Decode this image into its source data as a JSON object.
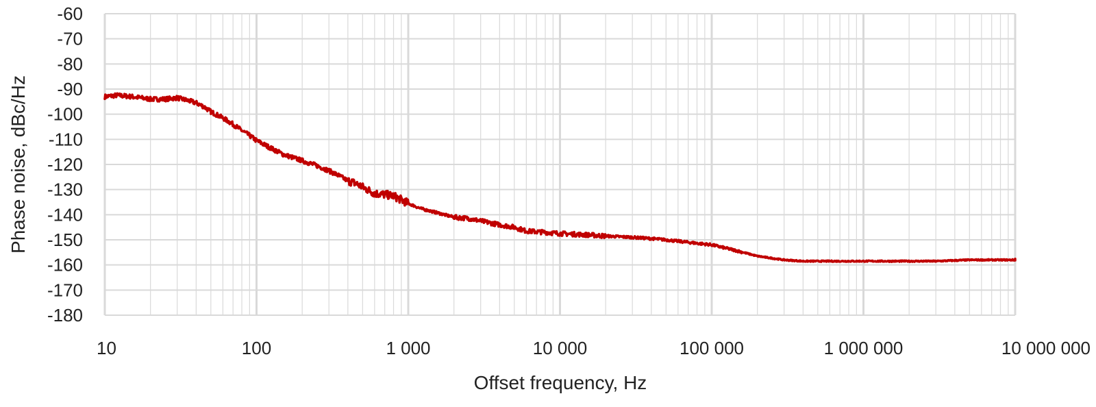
{
  "chart_data": {
    "type": "line",
    "title": "",
    "xlabel": "Offset frequency, Hz",
    "ylabel": "Phase noise, dBc/Hz",
    "x_scale": "log",
    "xlim": [
      10,
      10000000
    ],
    "ylim": [
      -180,
      -60
    ],
    "grid": true,
    "legend": "none",
    "x_tick_labels": [
      "10",
      "100",
      "1 000",
      "10 000",
      "100 000",
      "1 000 000",
      "10 000 000"
    ],
    "x_ticks": [
      10,
      100,
      1000,
      10000,
      100000,
      1000000,
      10000000
    ],
    "y_tick_labels": [
      "-60",
      "-70",
      "-80",
      "-90",
      "-100",
      "-110",
      "-120",
      "-130",
      "-140",
      "-150",
      "-160",
      "-170",
      "-180"
    ],
    "y_ticks": [
      -60,
      -70,
      -80,
      -90,
      -100,
      -110,
      -120,
      -130,
      -140,
      -150,
      -160,
      -170,
      -180
    ],
    "line_color": "#c00000",
    "grid_color": "#d9d9d9",
    "series": [
      {
        "x": [
          10,
          12,
          15,
          20,
          25,
          30,
          35,
          40,
          45,
          50,
          60,
          70,
          80,
          90,
          100,
          120,
          150,
          200,
          250,
          300,
          350,
          400,
          450,
          500,
          600,
          700,
          800,
          1000,
          1200,
          1500,
          2000,
          2500,
          3000,
          4000,
          5000,
          6000,
          8000,
          10000,
          15000,
          20000,
          30000,
          40000,
          50000,
          70000,
          100000,
          150000,
          200000,
          300000,
          400000,
          500000,
          700000,
          1000000,
          1500000,
          2000000,
          3000000,
          5000000,
          7000000,
          10000000,
          14000000
        ],
        "y": [
          -93,
          -92.5,
          -93,
          -94,
          -94,
          -93.5,
          -94.5,
          -95.5,
          -97,
          -99,
          -101.5,
          -104,
          -106.5,
          -108.5,
          -110.5,
          -113,
          -116,
          -118.5,
          -120.5,
          -122.5,
          -124.5,
          -126.5,
          -127.5,
          -129,
          -131.5,
          -132,
          -132.5,
          -135.5,
          -137.5,
          -139,
          -141,
          -141.5,
          -142.5,
          -144,
          -145,
          -146.5,
          -147,
          -147.5,
          -148,
          -148.5,
          -149,
          -149.5,
          -150,
          -151,
          -152,
          -154.5,
          -156.5,
          -158,
          -158.5,
          -158.5,
          -158.5,
          -158.5,
          -158.5,
          -158.5,
          -158.5,
          -158,
          -158,
          -158,
          -157.8
        ]
      }
    ]
  }
}
